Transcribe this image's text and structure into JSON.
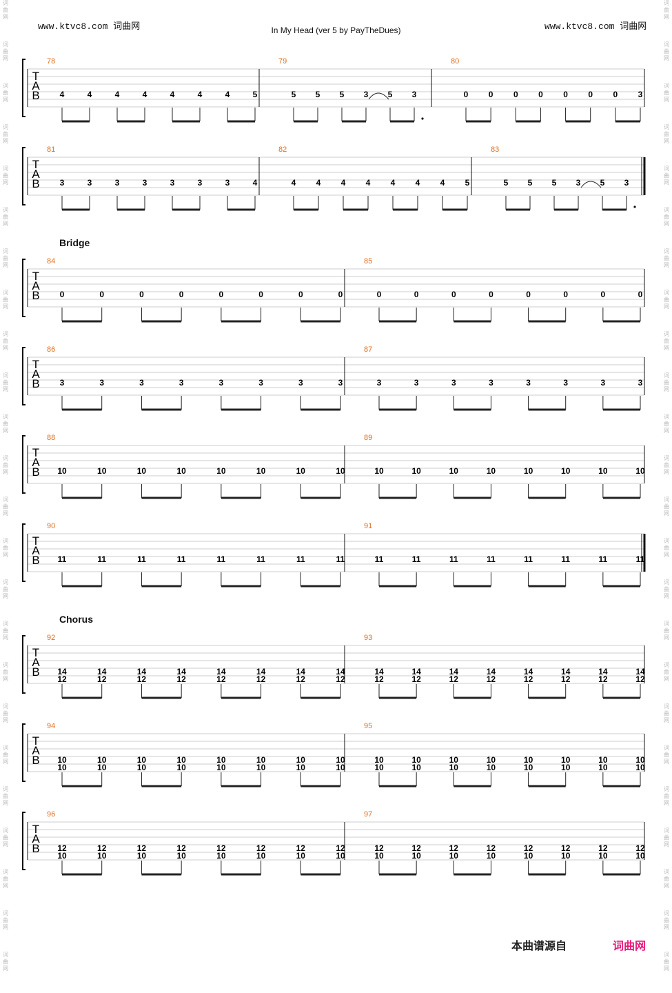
{
  "header": {
    "site_url": "www.ktvc8.com",
    "site_name": "词曲网",
    "title": "In My Head (ver 5 by PayTheDues)"
  },
  "side_watermark": [
    "词",
    "曲",
    "网"
  ],
  "sections": [
    "Bridge",
    "Chorus"
  ],
  "systems": [
    {
      "measures": [
        {
          "number": "78",
          "notes": [
            [
              "4"
            ],
            [
              "4"
            ],
            [
              "4"
            ],
            [
              "4"
            ],
            [
              "4"
            ],
            [
              "4"
            ],
            [
              "4"
            ],
            [
              "5"
            ]
          ]
        },
        {
          "number": "79",
          "notes": [
            [
              "5"
            ],
            [
              "5"
            ],
            [
              "5"
            ],
            [
              "3"
            ],
            [
              "5"
            ],
            [
              "3"
            ]
          ]
        },
        {
          "number": "80",
          "notes": [
            [
              "0"
            ],
            [
              "0"
            ],
            [
              "0"
            ],
            [
              "0"
            ],
            [
              "0"
            ],
            [
              "0"
            ],
            [
              "0"
            ],
            [
              "3"
            ]
          ]
        }
      ]
    },
    {
      "measures": [
        {
          "number": "81",
          "notes": [
            [
              "3"
            ],
            [
              "3"
            ],
            [
              "3"
            ],
            [
              "3"
            ],
            [
              "3"
            ],
            [
              "3"
            ],
            [
              "3"
            ],
            [
              "4"
            ]
          ]
        },
        {
          "number": "82",
          "notes": [
            [
              "4"
            ],
            [
              "4"
            ],
            [
              "4"
            ],
            [
              "4"
            ],
            [
              "4"
            ],
            [
              "4"
            ],
            [
              "4"
            ],
            [
              "5"
            ]
          ]
        },
        {
          "number": "83",
          "notes": [
            [
              "5"
            ],
            [
              "5"
            ],
            [
              "5"
            ],
            [
              "3"
            ],
            [
              "5"
            ],
            [
              "3"
            ]
          ]
        }
      ]
    },
    {
      "section": "Bridge",
      "measures": [
        {
          "number": "84",
          "notes": [
            [
              "0"
            ],
            [
              "0"
            ],
            [
              "0"
            ],
            [
              "0"
            ],
            [
              "0"
            ],
            [
              "0"
            ],
            [
              "0"
            ],
            [
              "0"
            ]
          ]
        },
        {
          "number": "85",
          "notes": [
            [
              "0"
            ],
            [
              "0"
            ],
            [
              "0"
            ],
            [
              "0"
            ],
            [
              "0"
            ],
            [
              "0"
            ],
            [
              "0"
            ],
            [
              "0"
            ]
          ]
        }
      ]
    },
    {
      "measures": [
        {
          "number": "86",
          "notes": [
            [
              "3"
            ],
            [
              "3"
            ],
            [
              "3"
            ],
            [
              "3"
            ],
            [
              "3"
            ],
            [
              "3"
            ],
            [
              "3"
            ],
            [
              "3"
            ]
          ]
        },
        {
          "number": "87",
          "notes": [
            [
              "3"
            ],
            [
              "3"
            ],
            [
              "3"
            ],
            [
              "3"
            ],
            [
              "3"
            ],
            [
              "3"
            ],
            [
              "3"
            ],
            [
              "3"
            ]
          ]
        }
      ]
    },
    {
      "measures": [
        {
          "number": "88",
          "notes": [
            [
              "10"
            ],
            [
              "10"
            ],
            [
              "10"
            ],
            [
              "10"
            ],
            [
              "10"
            ],
            [
              "10"
            ],
            [
              "10"
            ],
            [
              "10"
            ]
          ]
        },
        {
          "number": "89",
          "notes": [
            [
              "10"
            ],
            [
              "10"
            ],
            [
              "10"
            ],
            [
              "10"
            ],
            [
              "10"
            ],
            [
              "10"
            ],
            [
              "10"
            ],
            [
              "10"
            ]
          ]
        }
      ]
    },
    {
      "measures": [
        {
          "number": "90",
          "notes": [
            [
              "11"
            ],
            [
              "11"
            ],
            [
              "11"
            ],
            [
              "11"
            ],
            [
              "11"
            ],
            [
              "11"
            ],
            [
              "11"
            ],
            [
              "11"
            ]
          ]
        },
        {
          "number": "91",
          "notes": [
            [
              "11"
            ],
            [
              "11"
            ],
            [
              "11"
            ],
            [
              "11"
            ],
            [
              "11"
            ],
            [
              "11"
            ],
            [
              "11"
            ],
            [
              "11"
            ]
          ]
        }
      ]
    },
    {
      "section": "Chorus",
      "measures": [
        {
          "number": "92",
          "notes": [
            [
              "14",
              "12"
            ],
            [
              "14",
              "12"
            ],
            [
              "14",
              "12"
            ],
            [
              "14",
              "12"
            ],
            [
              "14",
              "12"
            ],
            [
              "14",
              "12"
            ],
            [
              "14",
              "12"
            ],
            [
              "14",
              "12"
            ]
          ]
        },
        {
          "number": "93",
          "notes": [
            [
              "14",
              "12"
            ],
            [
              "14",
              "12"
            ],
            [
              "14",
              "12"
            ],
            [
              "14",
              "12"
            ],
            [
              "14",
              "12"
            ],
            [
              "14",
              "12"
            ],
            [
              "14",
              "12"
            ],
            [
              "14",
              "12"
            ]
          ]
        }
      ]
    },
    {
      "measures": [
        {
          "number": "94",
          "notes": [
            [
              "10",
              "10"
            ],
            [
              "10",
              "10"
            ],
            [
              "10",
              "10"
            ],
            [
              "10",
              "10"
            ],
            [
              "10",
              "10"
            ],
            [
              "10",
              "10"
            ],
            [
              "10",
              "10"
            ],
            [
              "10",
              "10"
            ]
          ]
        },
        {
          "number": "95",
          "notes": [
            [
              "10",
              "10"
            ],
            [
              "10",
              "10"
            ],
            [
              "10",
              "10"
            ],
            [
              "10",
              "10"
            ],
            [
              "10",
              "10"
            ],
            [
              "10",
              "10"
            ],
            [
              "10",
              "10"
            ],
            [
              "10",
              "10"
            ]
          ]
        }
      ]
    },
    {
      "measures": [
        {
          "number": "96",
          "notes": [
            [
              "12",
              "10"
            ],
            [
              "12",
              "10"
            ],
            [
              "12",
              "10"
            ],
            [
              "12",
              "10"
            ],
            [
              "12",
              "10"
            ],
            [
              "12",
              "10"
            ],
            [
              "12",
              "10"
            ],
            [
              "12",
              "10"
            ]
          ]
        },
        {
          "number": "97",
          "notes": [
            [
              "12",
              "10"
            ],
            [
              "12",
              "10"
            ],
            [
              "12",
              "10"
            ],
            [
              "12",
              "10"
            ],
            [
              "12",
              "10"
            ],
            [
              "12",
              "10"
            ],
            [
              "12",
              "10"
            ],
            [
              "12",
              "10"
            ]
          ]
        }
      ]
    }
  ],
  "footer": {
    "source_label": "本曲谱源自",
    "source_site": "词曲网"
  },
  "colors": {
    "measure_number": "#e07020",
    "brand": "#e8197a",
    "staff_line": "#cccccc"
  }
}
